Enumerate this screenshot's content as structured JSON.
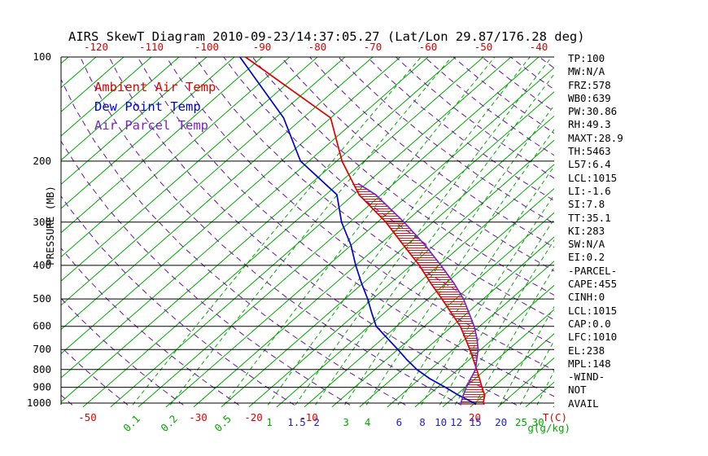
{
  "title": "AIRS SkewT Diagram 2010-09-23/14:37:05.27 (Lat/Lon 29.87/176.28 deg)",
  "legend": [
    {
      "label": "Ambient Air Temp",
      "color": "#e00000"
    },
    {
      "label": "Dew Point Temp",
      "color": "#0000cc"
    },
    {
      "label": "Air Parcel Temp",
      "color": "#7722cc"
    }
  ],
  "stats": [
    "TP:100",
    "MW:N/A",
    "FRZ:578",
    "WB0:639",
    "PW:30.86",
    "RH:49.3",
    "MAXT:28.9",
    "TH:5463",
    "L57:6.4",
    "LCL:1015",
    "LI:-1.6",
    "SI:7.8",
    "TT:35.1",
    "KI:283",
    "SW:N/A",
    "EI:0.2",
    "-PARCEL-",
    "CAPE:455",
    "CINH:0",
    "LCL:1015",
    "CAP:0.0",
    "LFC:1010",
    "EL:238",
    "MPL:148",
    "-WIND-",
    "NOT",
    "AVAIL"
  ],
  "chart_data": {
    "type": "line",
    "subtype": "skew-t-log-p",
    "title": "AIRS SkewT Diagram 2010-09-23/14:37:05.27 (Lat/Lon 29.87/176.28 deg)",
    "ylabel": "PRESSURE (MB)",
    "xlabel": "T(C)",
    "x2label": "g(g/kg)",
    "y_scale": "log-inverted",
    "ylim": [
      100,
      1000
    ],
    "pressure_ticks": [
      100,
      200,
      300,
      400,
      500,
      600,
      700,
      800,
      900,
      1000
    ],
    "top_temp_ticks_c": [
      -120,
      -110,
      -100,
      -90,
      -80,
      -70,
      -60,
      -50,
      -40
    ],
    "bottom_temp_ticks_c": [
      -50,
      -30,
      -20,
      -10,
      20
    ],
    "isotherm_step_c": 5,
    "axis_colors": {
      "temp": "#e00000",
      "pressure": "#000000"
    },
    "grid_colors": {
      "isotherm": "#00a800",
      "mixing": "#00a800",
      "adiabat": "#6a0dad",
      "pressure": "#000000"
    },
    "mixing_ratio_labels": [
      {
        "value": 0.1,
        "color": "#00a800",
        "rotated": true
      },
      {
        "value": 0.2,
        "color": "#00a800",
        "rotated": true
      },
      {
        "value": 0.5,
        "color": "#00a800",
        "rotated": true
      },
      {
        "value": 1,
        "color": "#00a800",
        "rotated": false
      },
      {
        "value": 1.5,
        "color": "#2222cc",
        "rotated": false
      },
      {
        "value": 2,
        "color": "#2222cc",
        "rotated": false
      },
      {
        "value": 3,
        "color": "#00a800",
        "rotated": false
      },
      {
        "value": 4,
        "color": "#00a800",
        "rotated": false
      },
      {
        "value": 6,
        "color": "#2222cc",
        "rotated": false
      },
      {
        "value": 8,
        "color": "#2222cc",
        "rotated": false
      },
      {
        "value": 10,
        "color": "#2222cc",
        "rotated": false
      },
      {
        "value": 12,
        "color": "#2222cc",
        "rotated": false
      },
      {
        "value": 15,
        "color": "#2222cc",
        "rotated": false
      },
      {
        "value": 20,
        "color": "#2222cc",
        "rotated": false
      },
      {
        "value": 25,
        "color": "#00a800",
        "rotated": false
      },
      {
        "value": 30,
        "color": "#00a800",
        "rotated": false
      }
    ],
    "series": [
      {
        "name": "Ambient Air Temp",
        "color": "#e00000",
        "points_p_t": [
          [
            1009,
            22.0
          ],
          [
            1000,
            21.5
          ],
          [
            950,
            20.2
          ],
          [
            900,
            18.0
          ],
          [
            850,
            15.8
          ],
          [
            800,
            13.4
          ],
          [
            750,
            10.8
          ],
          [
            700,
            8.0
          ],
          [
            650,
            4.9
          ],
          [
            600,
            1.5
          ],
          [
            550,
            -2.8
          ],
          [
            500,
            -7.5
          ],
          [
            450,
            -12.8
          ],
          [
            400,
            -18.5
          ],
          [
            350,
            -25.5
          ],
          [
            300,
            -33.5
          ],
          [
            250,
            -44.0
          ],
          [
            200,
            -54.0
          ],
          [
            150,
            -65.0
          ],
          [
            100,
            -93.0
          ]
        ]
      },
      {
        "name": "Dew Point Temp",
        "color": "#0000cc",
        "points_p_t": [
          [
            1009,
            20.5
          ],
          [
            1000,
            19.9
          ],
          [
            950,
            15.5
          ],
          [
            900,
            11.4
          ],
          [
            850,
            6.8
          ],
          [
            800,
            2.6
          ],
          [
            750,
            -1.2
          ],
          [
            700,
            -5.0
          ],
          [
            650,
            -9.2
          ],
          [
            600,
            -13.7
          ],
          [
            550,
            -17.2
          ],
          [
            500,
            -20.9
          ],
          [
            450,
            -25.3
          ],
          [
            400,
            -30.0
          ],
          [
            350,
            -35.0
          ],
          [
            300,
            -41.5
          ],
          [
            250,
            -48.0
          ],
          [
            200,
            -61.5
          ],
          [
            150,
            -73.5
          ],
          [
            100,
            -94.0
          ]
        ]
      },
      {
        "name": "Air Parcel Temp",
        "color": "#7722cc",
        "points_p_t": [
          [
            1009,
            17.8
          ],
          [
            1000,
            17.5
          ],
          [
            950,
            16.3
          ],
          [
            900,
            15.2
          ],
          [
            850,
            14.2
          ],
          [
            800,
            13.2
          ],
          [
            750,
            11.4
          ],
          [
            700,
            9.5
          ],
          [
            650,
            7.0
          ],
          [
            600,
            4.0
          ],
          [
            550,
            0.4
          ],
          [
            500,
            -3.6
          ],
          [
            450,
            -8.6
          ],
          [
            400,
            -14.6
          ],
          [
            350,
            -21.6
          ],
          [
            300,
            -30.2
          ],
          [
            250,
            -41.0
          ],
          [
            232,
            -46.5
          ]
        ]
      }
    ],
    "cape_hatch": {
      "between": [
        "Air Parcel Temp",
        "Ambient Air Temp"
      ],
      "color": "#e00000"
    },
    "wind_barbs": "NOT AVAIL"
  }
}
